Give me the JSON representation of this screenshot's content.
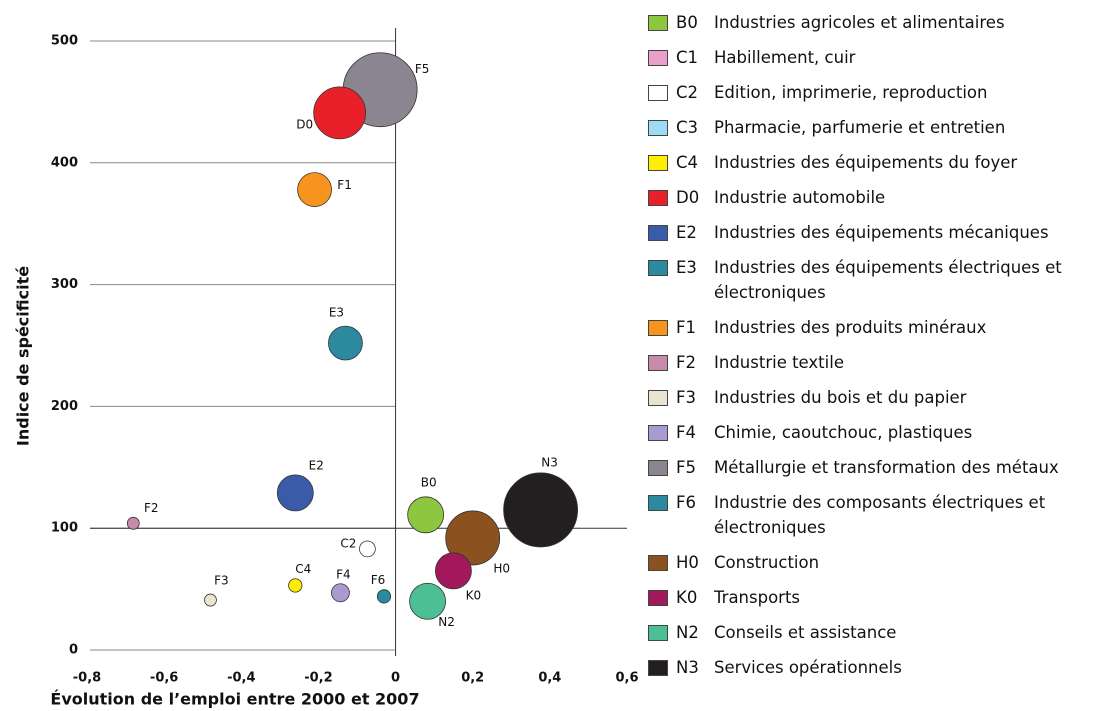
{
  "chart_data": {
    "type": "bubble",
    "xlabel": "Évolution de l’emploi entre 2000 et 2007",
    "ylabel": "Indice de spécificité",
    "xlim": [
      -0.8,
      0.6
    ],
    "xticks": [
      {
        "value": -0.8,
        "label": "-0,8"
      },
      {
        "value": -0.6,
        "label": "-0,6"
      },
      {
        "value": -0.4,
        "label": "-0,4"
      },
      {
        "value": -0.2,
        "label": "-0,2"
      },
      0,
      {
        "value": 0.2,
        "label": "0,2"
      },
      {
        "value": 0.4,
        "label": "0,4"
      },
      {
        "value": 0.6,
        "label": "0,6"
      }
    ],
    "ylim": [
      0,
      500
    ],
    "yticks": [
      0,
      100,
      200,
      300,
      400,
      500
    ],
    "grid": true,
    "series": [
      {
        "code": "B0",
        "name": "Industries agricoles et alimentaires",
        "color": "#8dc63f",
        "x": 0.078,
        "y": 111,
        "size": 36
      },
      {
        "code": "C1",
        "name": "Habillement, cuir",
        "color": "#e8a0c8"
      },
      {
        "code": "C2",
        "name": "Edition, imprimerie, reproduction",
        "color": "#ffffff",
        "x": -0.073,
        "y": 83,
        "size": 7
      },
      {
        "code": "C3",
        "name": "Pharmacie, parfumerie et entretien",
        "color": "#9ddcf5"
      },
      {
        "code": "C4",
        "name": "Industries des équipements du foyer",
        "color": "#ffee00",
        "x": -0.26,
        "y": 53,
        "size": 5
      },
      {
        "code": "D0",
        "name": "Industrie automobile",
        "color": "#e8202a",
        "x": -0.145,
        "y": 441,
        "size": 75
      },
      {
        "code": "E2",
        "name": "Industries des équipements mécaniques",
        "color": "#3a5ba8",
        "x": -0.26,
        "y": 129,
        "size": 36
      },
      {
        "code": "E3",
        "name": "Industries des équipements électriques et électroniques",
        "color": "#2b8aa0",
        "x": -0.13,
        "y": 252,
        "size": 32
      },
      {
        "code": "F1",
        "name": "Industries des produits minéraux",
        "color": "#f7941d",
        "x": -0.21,
        "y": 378,
        "size": 32
      },
      {
        "code": "F2",
        "name": "Industrie textile",
        "color": "#c78aa8",
        "x": -0.68,
        "y": 104,
        "size": 4
      },
      {
        "code": "F3",
        "name": "Industries du bois et du papier",
        "color": "#e8e4d0",
        "x": -0.48,
        "y": 41,
        "size": 4
      },
      {
        "code": "F4",
        "name": "Chimie, caoutchouc, plastiques",
        "color": "#a99ad0",
        "x": -0.143,
        "y": 47,
        "size": 9
      },
      {
        "code": "F5",
        "name": "Métallurgie et transformation des métaux",
        "color": "#8a8590",
        "x": -0.04,
        "y": 460,
        "size": 152
      },
      {
        "code": "F6",
        "name": "Industrie des composants électriques et électroniques",
        "color": "#2b8aa0",
        "x": -0.03,
        "y": 44,
        "size": 5
      },
      {
        "code": "H0",
        "name": "Construction",
        "color": "#8b5220",
        "x": 0.2,
        "y": 92,
        "size": 81
      },
      {
        "code": "K0",
        "name": "Transports",
        "color": "#a3185a",
        "x": 0.15,
        "y": 65,
        "size": 36
      },
      {
        "code": "N2",
        "name": "Conseils et assistance",
        "color": "#4dbf94",
        "x": 0.083,
        "y": 40,
        "size": 36
      },
      {
        "code": "N3",
        "name": "Services opérationnels",
        "color": "#231f20",
        "x": 0.376,
        "y": 115,
        "size": 152
      }
    ]
  }
}
